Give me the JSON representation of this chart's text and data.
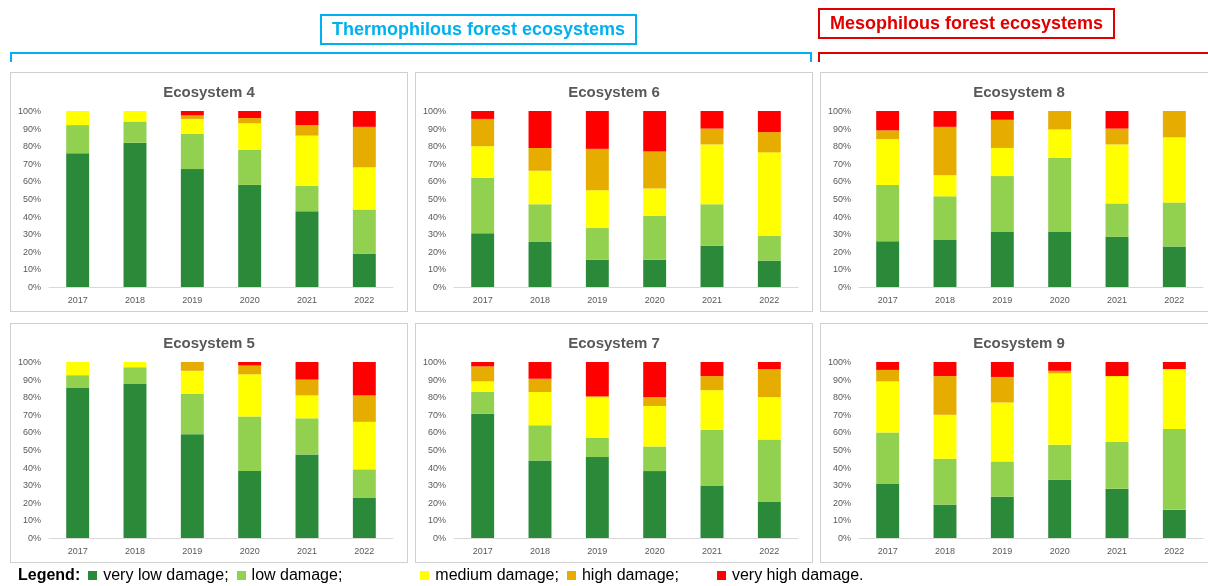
{
  "chart_data": [
    {
      "type": "bar",
      "stacked": true,
      "title": "Ecosystem 4",
      "categories": [
        "2017",
        "2018",
        "2019",
        "2020",
        "2021",
        "2022"
      ],
      "ylim": [
        0,
        100
      ],
      "yticks": [
        {
          "value": 0,
          "label": "0%"
        },
        {
          "value": 10,
          "label": "10%"
        },
        {
          "value": 20,
          "label": "20%"
        },
        {
          "value": 30,
          "label": "30%"
        },
        {
          "value": 40,
          "label": "40%"
        },
        {
          "value": 50,
          "label": "50%"
        },
        {
          "value": 60,
          "label": "60%"
        },
        {
          "value": 70,
          "label": "70%"
        },
        {
          "value": 80,
          "label": "80%"
        },
        {
          "value": 90,
          "label": "90%"
        },
        {
          "value": 100,
          "label": "100%"
        }
      ],
      "grid": false,
      "legend": "bottom",
      "legend_title": "Legend:",
      "annotations": [
        "Thermophilous forest ecosystems"
      ],
      "series": [
        {
          "name": "very low damage;",
          "color": "#2a8a3a",
          "values": [
            76,
            82,
            67,
            58,
            43,
            19
          ]
        },
        {
          "name": "low damage;",
          "color": "#92d050",
          "values": [
            16,
            12,
            20,
            20,
            14.5,
            25
          ]
        },
        {
          "name": "medium damage;",
          "color": "#ffff00",
          "values": [
            8,
            6,
            8.5,
            15,
            28.5,
            24
          ]
        },
        {
          "name": "high damage;",
          "color": "#e6ac00",
          "values": [
            0,
            0,
            2,
            3,
            6,
            23
          ]
        },
        {
          "name": "very high damage.",
          "color": "#ff0000",
          "values": [
            0,
            0,
            2.5,
            4,
            8,
            9
          ]
        }
      ]
    },
    {
      "type": "bar",
      "stacked": true,
      "title": "Ecosystem 6",
      "categories": [
        "2017",
        "2018",
        "2019",
        "2020",
        "2021",
        "2022"
      ],
      "ylim": [
        0,
        100
      ],
      "yticks": [
        {
          "value": 0,
          "label": "0%"
        },
        {
          "value": 10,
          "label": "10%"
        },
        {
          "value": 20,
          "label": "20%"
        },
        {
          "value": 30,
          "label": "30%"
        },
        {
          "value": 40,
          "label": "40%"
        },
        {
          "value": 50,
          "label": "50%"
        },
        {
          "value": 60,
          "label": "60%"
        },
        {
          "value": 70,
          "label": "70%"
        },
        {
          "value": 80,
          "label": "80%"
        },
        {
          "value": 90,
          "label": "90%"
        },
        {
          "value": 100,
          "label": "100%"
        }
      ],
      "grid": false,
      "series": [
        {
          "color": "#2a8a3a",
          "values": [
            30.5,
            25.5,
            15.5,
            15.5,
            23.5,
            15
          ]
        },
        {
          "color": "#92d050",
          "values": [
            31.5,
            21.5,
            18,
            25,
            23.5,
            14
          ]
        },
        {
          "color": "#ffff00",
          "values": [
            18,
            19,
            21.5,
            15.5,
            34,
            47.5
          ]
        },
        {
          "color": "#e6ac00",
          "values": [
            15.5,
            13,
            23.5,
            21,
            9,
            11.5
          ]
        },
        {
          "color": "#ff0000",
          "values": [
            4.5,
            21,
            21.5,
            23,
            10,
            12
          ]
        }
      ]
    },
    {
      "type": "bar",
      "stacked": true,
      "title": "Ecosystem 8",
      "categories": [
        "2017",
        "2018",
        "2019",
        "2020",
        "2021",
        "2022"
      ],
      "ylim": [
        0,
        100
      ],
      "yticks": [
        {
          "value": 0,
          "label": "0%"
        },
        {
          "value": 10,
          "label": "10%"
        },
        {
          "value": 20,
          "label": "20%"
        },
        {
          "value": 30,
          "label": "30%"
        },
        {
          "value": 40,
          "label": "40%"
        },
        {
          "value": 50,
          "label": "50%"
        },
        {
          "value": 60,
          "label": "60%"
        },
        {
          "value": 70,
          "label": "70%"
        },
        {
          "value": 80,
          "label": "80%"
        },
        {
          "value": 90,
          "label": "90%"
        },
        {
          "value": 100,
          "label": "100%"
        }
      ],
      "grid": false,
      "annotations": [
        "Mesophilous  forest ecosystems"
      ],
      "series": [
        {
          "color": "#2a8a3a",
          "values": [
            26,
            27,
            31.5,
            31.5,
            28.5,
            23
          ]
        },
        {
          "color": "#92d050",
          "values": [
            32,
            24.5,
            31.5,
            42,
            19,
            25
          ]
        },
        {
          "color": "#ffff00",
          "values": [
            26,
            12,
            16,
            16,
            33.5,
            37
          ]
        },
        {
          "color": "#e6ac00",
          "values": [
            5,
            27.5,
            16,
            10.5,
            9,
            15
          ]
        },
        {
          "color": "#ff0000",
          "values": [
            11,
            9,
            5,
            0,
            10,
            0
          ]
        }
      ]
    },
    {
      "type": "bar",
      "stacked": true,
      "title": "Ecosystem 5",
      "categories": [
        "2017",
        "2018",
        "2019",
        "2020",
        "2021",
        "2022"
      ],
      "ylim": [
        0,
        100
      ],
      "yticks": [
        {
          "value": 0,
          "label": "0%"
        },
        {
          "value": 10,
          "label": "10%"
        },
        {
          "value": 20,
          "label": "20%"
        },
        {
          "value": 30,
          "label": "30%"
        },
        {
          "value": 40,
          "label": "40%"
        },
        {
          "value": 50,
          "label": "50%"
        },
        {
          "value": 60,
          "label": "60%"
        },
        {
          "value": 70,
          "label": "70%"
        },
        {
          "value": 80,
          "label": "80%"
        },
        {
          "value": 90,
          "label": "90%"
        },
        {
          "value": 100,
          "label": "100%"
        }
      ],
      "grid": false,
      "series": [
        {
          "color": "#2a8a3a",
          "values": [
            85.5,
            87.5,
            59,
            38,
            47.5,
            23
          ]
        },
        {
          "color": "#92d050",
          "values": [
            7,
            9.5,
            23,
            31,
            20.5,
            16
          ]
        },
        {
          "color": "#ffff00",
          "values": [
            7.5,
            3,
            13,
            24,
            13,
            27
          ]
        },
        {
          "color": "#e6ac00",
          "values": [
            0,
            0,
            5,
            5,
            9,
            15
          ]
        },
        {
          "color": "#ff0000",
          "values": [
            0,
            0,
            0,
            2,
            10,
            19
          ]
        }
      ]
    },
    {
      "type": "bar",
      "stacked": true,
      "title": "Ecosystem 7",
      "categories": [
        "2017",
        "2018",
        "2019",
        "2020",
        "2021",
        "2022"
      ],
      "ylim": [
        0,
        100
      ],
      "yticks": [
        {
          "value": 0,
          "label": "0%"
        },
        {
          "value": 10,
          "label": "10%"
        },
        {
          "value": 20,
          "label": "20%"
        },
        {
          "value": 30,
          "label": "30%"
        },
        {
          "value": 40,
          "label": "40%"
        },
        {
          "value": 50,
          "label": "50%"
        },
        {
          "value": 60,
          "label": "60%"
        },
        {
          "value": 70,
          "label": "70%"
        },
        {
          "value": 80,
          "label": "80%"
        },
        {
          "value": 90,
          "label": "90%"
        },
        {
          "value": 100,
          "label": "100%"
        }
      ],
      "grid": false,
      "series": [
        {
          "color": "#2a8a3a",
          "values": [
            70.5,
            44,
            46,
            38,
            29.5,
            20.5
          ]
        },
        {
          "color": "#92d050",
          "values": [
            12.5,
            20,
            11,
            14,
            32,
            35.5
          ]
        },
        {
          "color": "#ffff00",
          "values": [
            6,
            19,
            23,
            23,
            22.5,
            24
          ]
        },
        {
          "color": "#e6ac00",
          "values": [
            8.5,
            7.5,
            0.5,
            5,
            8,
            16
          ]
        },
        {
          "color": "#ff0000",
          "values": [
            2.5,
            9.5,
            19.5,
            20,
            8,
            4
          ]
        }
      ]
    },
    {
      "type": "bar",
      "stacked": true,
      "title": "Ecosystem 9",
      "categories": [
        "2017",
        "2018",
        "2019",
        "2020",
        "2021",
        "2022"
      ],
      "ylim": [
        0,
        100
      ],
      "yticks": [
        {
          "value": 0,
          "label": "0%"
        },
        {
          "value": 10,
          "label": "10%"
        },
        {
          "value": 20,
          "label": "20%"
        },
        {
          "value": 30,
          "label": "30%"
        },
        {
          "value": 40,
          "label": "40%"
        },
        {
          "value": 50,
          "label": "50%"
        },
        {
          "value": 60,
          "label": "60%"
        },
        {
          "value": 70,
          "label": "70%"
        },
        {
          "value": 80,
          "label": "80%"
        },
        {
          "value": 90,
          "label": "90%"
        },
        {
          "value": 100,
          "label": "100%"
        }
      ],
      "grid": false,
      "series": [
        {
          "color": "#2a8a3a",
          "values": [
            31,
            19,
            23.5,
            33,
            28,
            16
          ]
        },
        {
          "color": "#92d050",
          "values": [
            29,
            26,
            20,
            20,
            26.5,
            46
          ]
        },
        {
          "color": "#ffff00",
          "values": [
            29,
            25,
            33.5,
            40.5,
            37.5,
            34
          ]
        },
        {
          "color": "#e6ac00",
          "values": [
            6.5,
            22,
            14.5,
            1.5,
            0,
            0
          ]
        },
        {
          "color": "#ff0000",
          "values": [
            4.5,
            8,
            8.5,
            5,
            8,
            4
          ]
        }
      ]
    }
  ]
}
